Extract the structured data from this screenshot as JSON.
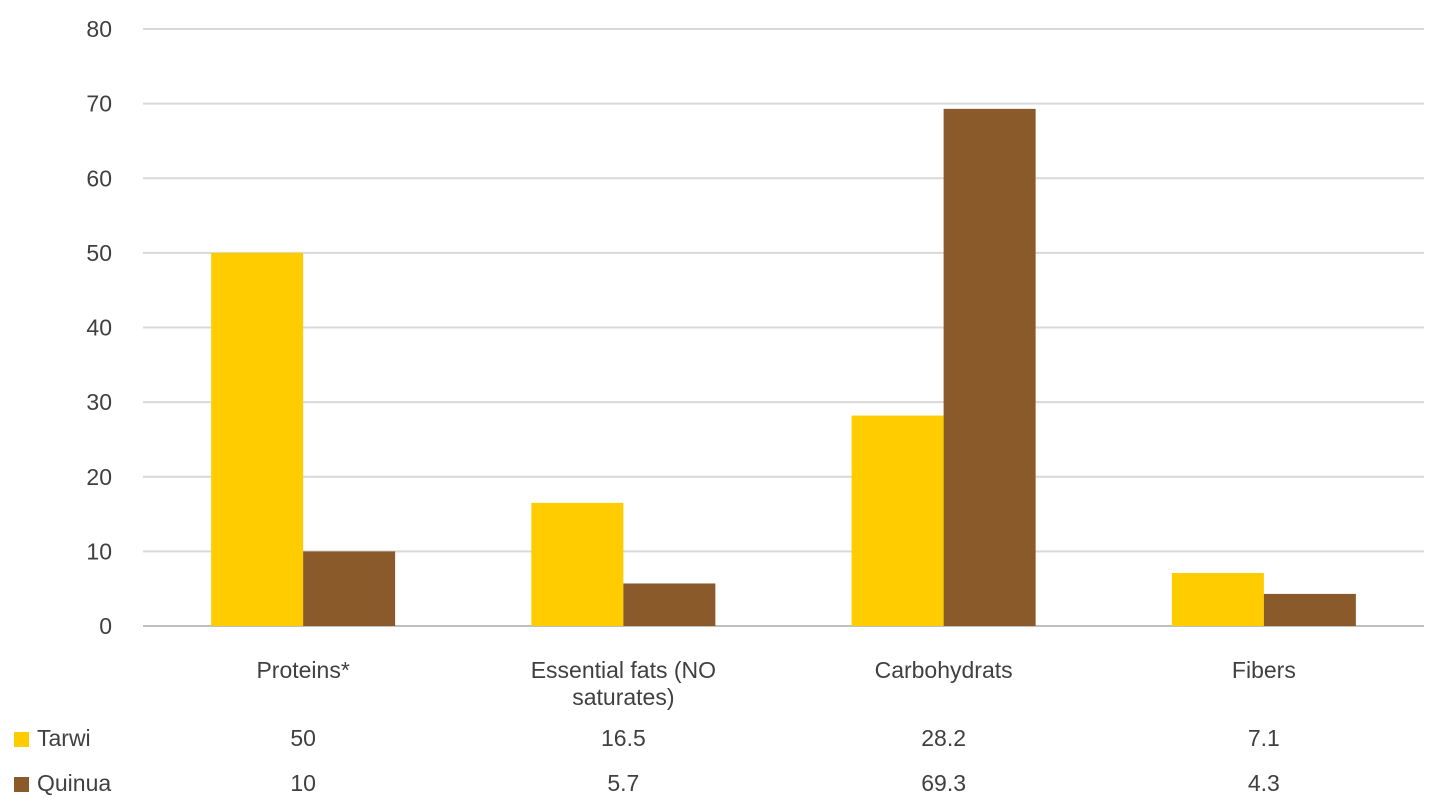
{
  "chart_data": {
    "type": "bar",
    "categories": [
      "Proteins*",
      "Essential fats (NO saturates)",
      "Carbohydrats",
      "Fibers"
    ],
    "category_label_lines": [
      [
        "Proteins*"
      ],
      [
        "Essential fats (NO",
        "saturates)"
      ],
      [
        "Carbohydrats"
      ],
      [
        "Fibers"
      ]
    ],
    "series": [
      {
        "name": "Tarwi",
        "values": [
          50,
          16.5,
          28.2,
          7.1
        ],
        "value_labels": [
          "50",
          "16.5",
          "28.2",
          "7.1"
        ],
        "color": "#FFCC00"
      },
      {
        "name": "Quinua",
        "values": [
          10,
          5.7,
          69.3,
          4.3
        ],
        "value_labels": [
          "10",
          "5.7",
          "69.3",
          "4.3"
        ],
        "color": "#8B5A2B"
      }
    ],
    "ylim": [
      0,
      80
    ],
    "yticks": [
      "0",
      "10",
      "20",
      "30",
      "40",
      "50",
      "60",
      "70",
      "80"
    ],
    "grid": true,
    "legend": "data-table-left",
    "title": "",
    "xlabel": "",
    "ylabel": ""
  },
  "colors": {
    "gridline": "#D9D9D9",
    "axis": "#BFBFBF",
    "text": "#404040"
  }
}
